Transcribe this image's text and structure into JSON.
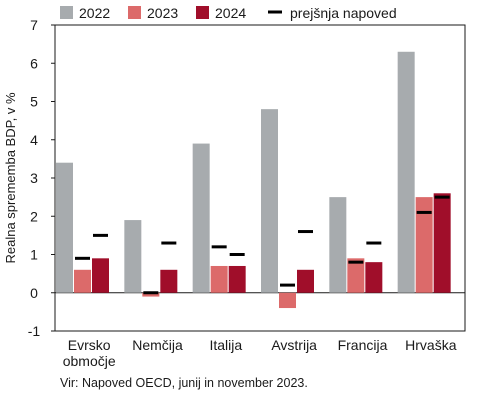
{
  "chart_data": {
    "type": "bar",
    "categories": [
      [
        "Evrsko",
        "območje"
      ],
      [
        "Nemčija"
      ],
      [
        "Italija"
      ],
      [
        "Avstrija"
      ],
      [
        "Francija"
      ],
      [
        "Hrvaška"
      ]
    ],
    "series": [
      {
        "name": "2022",
        "color": "#a7abae",
        "values": [
          3.4,
          1.9,
          3.9,
          4.8,
          2.5,
          6.3
        ]
      },
      {
        "name": "2023",
        "color": "#dc6a6a",
        "values": [
          0.6,
          -0.1,
          0.7,
          -0.4,
          0.9,
          2.5
        ]
      },
      {
        "name": "2024",
        "color": "#a00e2a",
        "values": [
          0.9,
          0.6,
          0.7,
          0.6,
          0.8,
          2.6
        ]
      }
    ],
    "previous_forecast": {
      "name": "prejšnja napoved",
      "color": "#000000",
      "values_2023": [
        0.9,
        0.0,
        1.2,
        0.2,
        0.8,
        2.1
      ],
      "values_2024": [
        1.5,
        1.3,
        1.0,
        1.6,
        1.3,
        2.5
      ]
    },
    "ylabel": "Realna sprememba BDP, v %",
    "ylim": [
      -1,
      7
    ],
    "yticks": [
      -1,
      0,
      1,
      2,
      3,
      4,
      5,
      6,
      7
    ],
    "grid": true,
    "legend_position": "top"
  },
  "source": "Vir: Napoved OECD, junij in november 2023."
}
